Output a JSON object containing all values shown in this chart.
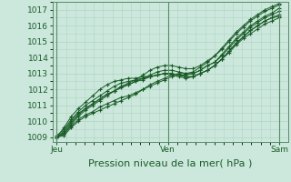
{
  "bg_color": "#cce8dc",
  "grid_color": "#b0d4c4",
  "line_color": "#1a5c28",
  "marker_color": "#1a5c28",
  "xlabel": "Pression niveau de la mer( hPa )",
  "xtick_labels": [
    "Jeu",
    "Ven",
    "Sam"
  ],
  "xtick_positions": [
    0.0,
    0.5,
    1.0
  ],
  "ylim_min": 1008.7,
  "ylim_max": 1017.5,
  "yticks": [
    1009,
    1010,
    1011,
    1012,
    1013,
    1014,
    1015,
    1016,
    1017
  ],
  "xlabel_fontsize": 8,
  "tick_fontsize": 6.5,
  "series": [
    [
      1009.0,
      1009.2,
      1009.8,
      1010.3,
      1010.7,
      1011.0,
      1011.3,
      1011.6,
      1011.9,
      1012.2,
      1012.4,
      1012.6,
      1012.9,
      1013.2,
      1013.4,
      1013.5,
      1013.5,
      1013.4,
      1013.3,
      1013.3,
      1013.5,
      1013.8,
      1014.1,
      1014.5,
      1015.0,
      1015.5,
      1015.9,
      1016.3,
      1016.6,
      1016.9,
      1017.1,
      1017.3
    ],
    [
      1009.0,
      1009.3,
      1009.9,
      1010.4,
      1010.8,
      1011.1,
      1011.4,
      1011.7,
      1011.9,
      1012.1,
      1012.3,
      1012.5,
      1012.7,
      1012.9,
      1013.1,
      1013.2,
      1013.2,
      1013.1,
      1013.0,
      1013.0,
      1013.2,
      1013.5,
      1013.7,
      1014.1,
      1014.6,
      1015.1,
      1015.5,
      1015.9,
      1016.2,
      1016.5,
      1016.7,
      1016.9
    ],
    [
      1009.1,
      1009.5,
      1010.1,
      1010.6,
      1011.0,
      1011.3,
      1011.6,
      1011.9,
      1012.2,
      1012.4,
      1012.5,
      1012.6,
      1012.7,
      1012.8,
      1012.9,
      1013.0,
      1013.0,
      1012.9,
      1012.8,
      1012.8,
      1013.0,
      1013.2,
      1013.5,
      1013.9,
      1014.4,
      1014.9,
      1015.3,
      1015.7,
      1016.0,
      1016.3,
      1016.5,
      1016.6
    ],
    [
      1009.0,
      1009.1,
      1009.6,
      1010.0,
      1010.3,
      1010.5,
      1010.7,
      1010.9,
      1011.1,
      1011.3,
      1011.5,
      1011.7,
      1012.0,
      1012.3,
      1012.5,
      1012.7,
      1012.9,
      1013.0,
      1013.0,
      1013.1,
      1013.4,
      1013.7,
      1014.1,
      1014.6,
      1015.1,
      1015.6,
      1016.0,
      1016.4,
      1016.7,
      1017.0,
      1017.2,
      1017.4
    ],
    [
      1009.0,
      1009.2,
      1009.7,
      1010.1,
      1010.4,
      1010.6,
      1010.9,
      1011.1,
      1011.3,
      1011.5,
      1011.6,
      1011.8,
      1012.0,
      1012.2,
      1012.4,
      1012.6,
      1012.8,
      1012.9,
      1012.9,
      1013.0,
      1013.2,
      1013.5,
      1013.7,
      1014.2,
      1014.7,
      1015.2,
      1015.6,
      1016.0,
      1016.3,
      1016.6,
      1016.8,
      1017.1
    ],
    [
      1009.0,
      1009.4,
      1010.0,
      1010.5,
      1010.8,
      1011.1,
      1011.4,
      1011.7,
      1011.9,
      1012.2,
      1012.3,
      1012.5,
      1012.6,
      1012.8,
      1012.9,
      1013.0,
      1013.0,
      1012.9,
      1012.8,
      1012.8,
      1013.0,
      1013.2,
      1013.5,
      1013.9,
      1014.4,
      1014.9,
      1015.3,
      1015.7,
      1016.0,
      1016.3,
      1016.5,
      1016.7
    ],
    [
      1009.0,
      1009.6,
      1010.3,
      1010.8,
      1011.2,
      1011.6,
      1012.0,
      1012.3,
      1012.5,
      1012.6,
      1012.7,
      1012.7,
      1012.8,
      1012.8,
      1012.9,
      1013.0,
      1012.9,
      1012.8,
      1012.7,
      1012.8,
      1013.0,
      1013.2,
      1013.5,
      1013.9,
      1014.3,
      1014.8,
      1015.2,
      1015.5,
      1015.8,
      1016.1,
      1016.3,
      1016.5
    ]
  ]
}
